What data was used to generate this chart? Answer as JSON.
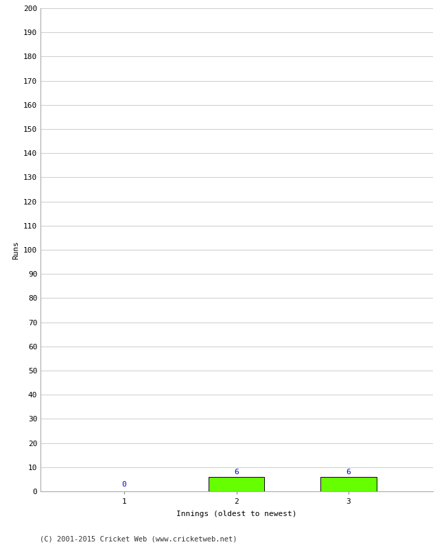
{
  "xlabel": "Innings (oldest to newest)",
  "ylabel": "Runs",
  "categories": [
    1,
    2,
    3
  ],
  "values": [
    0,
    6,
    6
  ],
  "bar_color": "#66ff00",
  "bar_edgecolor": "#000000",
  "value_color": "#0000cc",
  "ylim": [
    0,
    200
  ],
  "ytick_step": 10,
  "background_color": "#ffffff",
  "footer": "(C) 2001-2015 Cricket Web (www.cricketweb.net)"
}
